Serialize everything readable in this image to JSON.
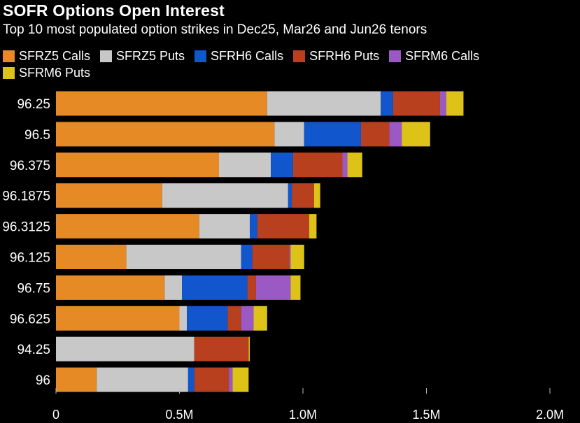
{
  "chart_data": {
    "type": "bar",
    "orientation": "horizontal",
    "stacked": true,
    "title": "SOFR Options Open Interest",
    "subtitle": "Top 10 most populated option strikes in Dec25, Mar26 and Jun26 tenors",
    "categories": [
      "96.25",
      "96.5",
      "96.375",
      "96.1875",
      "96.3125",
      "96.125",
      "96.75",
      "96.625",
      "94.25",
      "96"
    ],
    "series": [
      {
        "name": "SFRZ5 Calls",
        "color": "#E68A26",
        "values": [
          855000,
          885000,
          660000,
          430000,
          580000,
          285000,
          440000,
          500000,
          0,
          165000
        ]
      },
      {
        "name": "SFRZ5 Puts",
        "color": "#C8C8C8",
        "values": [
          460000,
          120000,
          210000,
          510000,
          205000,
          465000,
          70000,
          30000,
          560000,
          370000
        ]
      },
      {
        "name": "SFRH6 Calls",
        "color": "#1156CC",
        "values": [
          50000,
          230000,
          90000,
          15000,
          30000,
          45000,
          265000,
          165000,
          0,
          25000
        ]
      },
      {
        "name": "SFRH6 Puts",
        "color": "#B8401F",
        "values": [
          190000,
          115000,
          200000,
          90000,
          210000,
          150000,
          35000,
          55000,
          220000,
          140000
        ]
      },
      {
        "name": "SFRM6 Calls",
        "color": "#9B59C6",
        "values": [
          25000,
          50000,
          20000,
          0,
          0,
          5000,
          140000,
          50000,
          0,
          15000
        ]
      },
      {
        "name": "SFRM6 Puts",
        "color": "#DDC218",
        "values": [
          70000,
          115000,
          60000,
          25000,
          30000,
          55000,
          40000,
          55000,
          5000,
          65000
        ]
      }
    ],
    "xlim": [
      0,
      2000000
    ],
    "xticks": [
      0,
      500000,
      1000000,
      1500000,
      2000000
    ],
    "xtick_labels": [
      "0",
      "0.5M",
      "1.0M",
      "1.5M",
      "2.0M"
    ],
    "xlabel": "",
    "ylabel": "",
    "grid": false,
    "legend": "top-left"
  }
}
